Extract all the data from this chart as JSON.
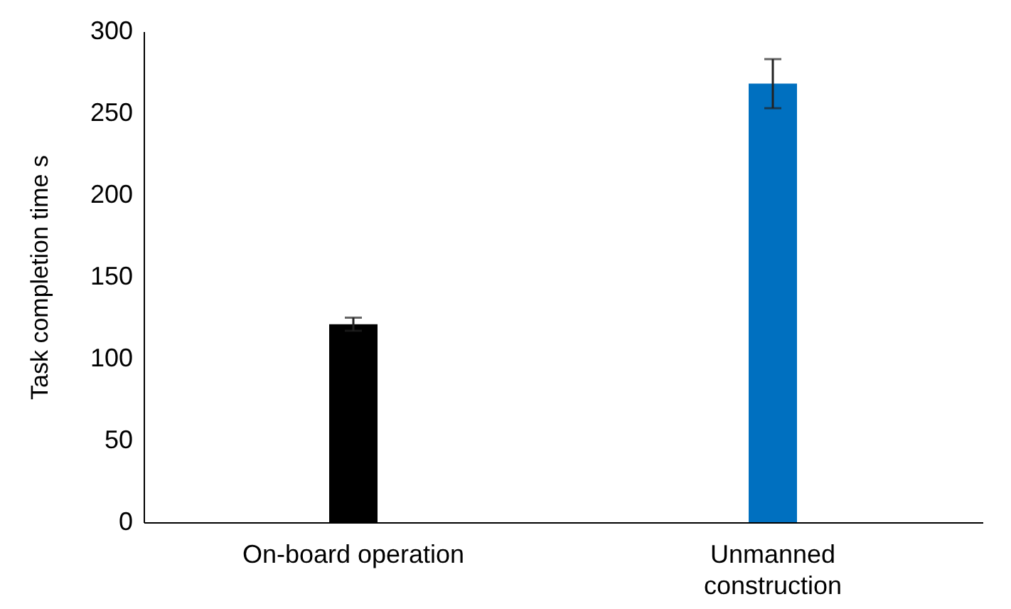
{
  "chart_data": {
    "type": "bar",
    "ylabel": "Task completion time s",
    "categories": [
      "On-board operation",
      "Unmanned construction"
    ],
    "values": [
      121,
      268
    ],
    "errors": [
      4,
      15
    ],
    "colors": [
      "#000000",
      "#0070c0"
    ],
    "ylim": [
      0,
      300
    ],
    "yticks": [
      0,
      50,
      100,
      150,
      200,
      250,
      300
    ]
  }
}
